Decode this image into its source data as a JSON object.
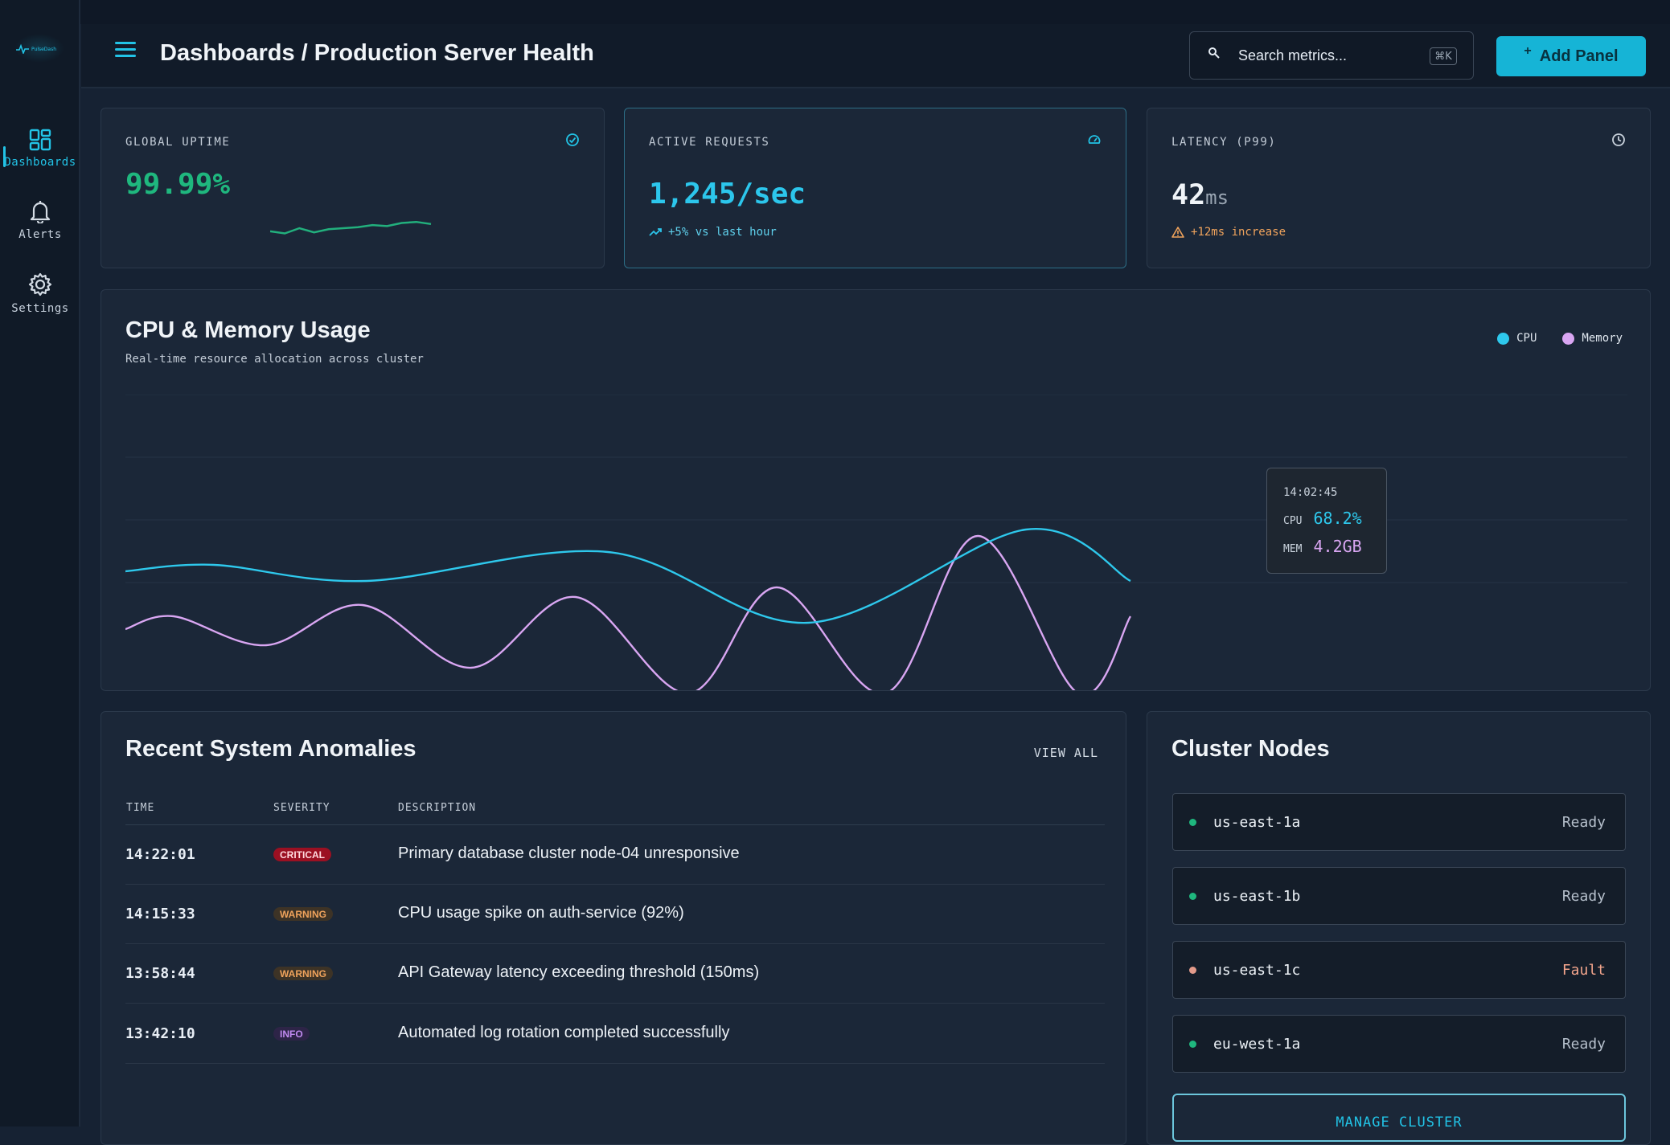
{
  "app": {
    "logo_text": "PulseDash"
  },
  "sidebar": {
    "items": [
      {
        "label": "Dashboards",
        "icon": "grid-icon",
        "active": true
      },
      {
        "label": "Alerts",
        "icon": "bell-icon",
        "active": false
      },
      {
        "label": "Settings",
        "icon": "gear-icon",
        "active": false
      }
    ]
  },
  "header": {
    "title": "Dashboards / Production Server Health",
    "search_placeholder": "Search metrics...",
    "search_shortcut": "⌘K",
    "add_button_icon": "+",
    "add_button_label": "Add Panel"
  },
  "metrics": {
    "uptime": {
      "label": "GLOBAL UPTIME",
      "value": "99.99%",
      "icon": "check-circle-icon",
      "sparkline": [
        0.35,
        0.25,
        0.5,
        0.3,
        0.45,
        0.5,
        0.55,
        0.65,
        0.6,
        0.75,
        0.8,
        0.7
      ]
    },
    "requests": {
      "label": "ACTIVE REQUESTS",
      "value": "1,245/sec",
      "icon": "gauge-icon",
      "trend_icon": "trend-up-icon",
      "note": "+5% vs last hour"
    },
    "latency": {
      "label": "LATENCY (P99)",
      "value": "42",
      "unit": "ms",
      "icon": "clock-icon",
      "note_icon": "warning-icon",
      "note": "+12ms increase"
    }
  },
  "usage_chart": {
    "title": "CPU & Memory Usage",
    "subtitle": "Real-time resource allocation across cluster",
    "legend": [
      {
        "name": "CPU",
        "color": "#2ec8ec"
      },
      {
        "name": "Memory",
        "color": "#d9a6f2"
      }
    ],
    "tooltip": {
      "time": "14:02:45",
      "cpu_label": "CPU",
      "cpu_value": "68.2%",
      "mem_label": "MEM",
      "mem_value": "4.2GB"
    }
  },
  "chart_data": {
    "type": "line",
    "title": "CPU & Memory Usage",
    "series": [
      {
        "name": "CPU",
        "color": "#2ec8ec",
        "x": [
          0,
          110,
          300,
          600,
          850,
          1120,
          1250
        ],
        "y": [
          0.66,
          0.7,
          0.6,
          0.78,
          0.34,
          0.92,
          0.6
        ]
      },
      {
        "name": "Memory",
        "color": "#d9a6f2",
        "x": [
          0,
          60,
          175,
          295,
          430,
          560,
          700,
          810,
          945,
          1060,
          1185,
          1250
        ],
        "y": [
          0.3,
          0.38,
          0.2,
          0.45,
          0.06,
          0.5,
          -0.1,
          0.56,
          -0.1,
          0.88,
          -0.1,
          0.38
        ]
      }
    ],
    "grid": true,
    "legend_position": "top-right"
  },
  "anomalies": {
    "title": "Recent System Anomalies",
    "view_all": "VIEW ALL",
    "columns": [
      "TIME",
      "SEVERITY",
      "DESCRIPTION"
    ],
    "rows": [
      {
        "time": "14:22:01",
        "severity": "CRITICAL",
        "description": "Primary database cluster node-04 unresponsive"
      },
      {
        "time": "14:15:33",
        "severity": "WARNING",
        "description": "CPU usage spike on auth-service (92%)"
      },
      {
        "time": "13:58:44",
        "severity": "WARNING",
        "description": "API Gateway latency exceeding threshold (150ms)"
      },
      {
        "time": "13:42:10",
        "severity": "INFO",
        "description": "Automated log rotation completed successfully"
      }
    ]
  },
  "cluster": {
    "title": "Cluster Nodes",
    "nodes": [
      {
        "name": "us-east-1a",
        "status": "Ready"
      },
      {
        "name": "us-east-1b",
        "status": "Ready"
      },
      {
        "name": "us-east-1c",
        "status": "Fault"
      },
      {
        "name": "eu-west-1a",
        "status": "Ready"
      }
    ],
    "manage_button": "MANAGE CLUSTER"
  },
  "colors": {
    "accent": "#22c3e6",
    "success": "#22b07d",
    "warning": "#f0a35c",
    "critical": "#c0182a",
    "info": "#b77fe0"
  }
}
